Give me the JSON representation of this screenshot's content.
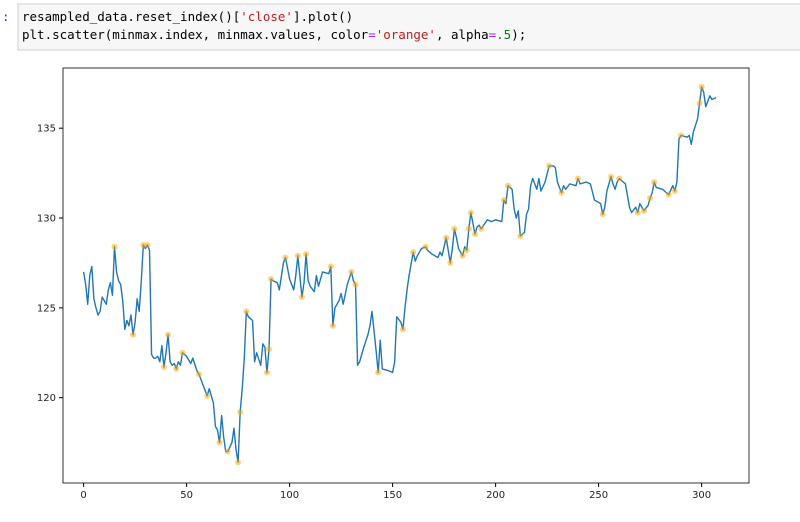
{
  "code": {
    "prompt": ":",
    "lines": [
      "resampled_data.reset_index()['close'].plot()",
      "plt.scatter(minmax.index, minmax.values, color='orange', alpha=.5);"
    ]
  },
  "chart_data": {
    "type": "line",
    "xlim": [
      -10,
      323
    ],
    "ylim": [
      115.25,
      138.35
    ],
    "xticks": [
      0,
      50,
      100,
      150,
      200,
      250,
      300
    ],
    "yticks": [
      120,
      125,
      130,
      135
    ],
    "series": [
      {
        "type": "line",
        "color": "#1f77b4",
        "x": [
          0,
          1,
          2,
          3,
          4,
          5,
          6,
          7,
          8,
          9,
          10,
          11,
          12,
          13,
          14,
          15,
          16,
          17,
          18,
          19,
          20,
          21,
          22,
          23,
          24,
          25,
          26,
          27,
          28,
          29,
          30,
          31,
          32,
          33,
          34,
          35,
          36,
          37,
          38,
          39,
          40,
          41,
          42,
          43,
          44,
          45,
          46,
          47,
          48,
          50,
          52,
          53,
          55,
          56,
          58,
          60,
          61,
          63,
          64,
          65,
          66,
          67,
          68,
          69,
          70,
          72,
          73,
          74,
          75,
          76,
          77,
          78,
          79,
          80,
          82,
          83,
          84,
          86,
          87,
          88,
          89,
          90,
          91,
          92,
          94,
          95,
          97,
          98,
          100,
          101,
          102,
          103,
          104,
          106,
          107,
          108,
          109,
          110,
          112,
          113,
          114,
          116,
          119,
          120,
          121,
          122,
          124,
          125,
          126,
          128,
          130,
          131,
          132,
          133,
          134,
          136,
          138,
          139,
          140,
          142,
          143,
          144,
          145,
          148,
          150,
          151,
          152,
          154,
          155,
          156,
          157,
          158,
          160,
          161,
          162,
          164,
          166,
          167,
          169,
          172,
          173,
          174,
          176,
          178,
          179,
          180,
          181,
          182,
          184,
          185,
          186,
          187,
          188,
          190,
          191,
          192,
          193,
          196,
          198,
          200,
          203,
          204,
          205,
          206,
          208,
          209,
          210,
          211,
          212,
          214,
          215,
          216,
          217,
          218,
          220,
          221,
          222,
          224,
          226,
          228,
          229,
          230,
          232,
          233,
          234,
          236,
          239,
          240,
          241,
          244,
          246,
          248,
          251,
          252,
          253,
          254,
          256,
          257,
          258,
          259,
          260,
          263,
          265,
          266,
          268,
          269,
          270,
          271,
          272,
          274,
          275,
          276,
          277,
          278,
          281,
          283,
          284,
          286,
          287,
          288,
          289,
          290,
          293,
          294,
          295,
          296,
          298,
          299,
          300,
          301,
          302,
          304,
          305,
          307
        ],
        "values": [
          127.0,
          126.3,
          125.2,
          126.8,
          127.3,
          125.5,
          125.0,
          124.6,
          124.8,
          125.6,
          125.4,
          125.2,
          126.0,
          126.4,
          125.7,
          128.4,
          127.0,
          126.5,
          126.3,
          125.4,
          123.8,
          124.3,
          124.0,
          124.6,
          123.5,
          124.2,
          125.5,
          124.8,
          126.5,
          128.5,
          128.3,
          128.5,
          128.2,
          122.4,
          122.2,
          122.2,
          122.3,
          122.0,
          122.9,
          121.7,
          122.5,
          123.5,
          122.0,
          121.8,
          121.9,
          121.6,
          122.0,
          121.8,
          122.5,
          122.3,
          121.9,
          122.2,
          121.5,
          121.3,
          120.7,
          120.1,
          120.5,
          119.7,
          118.4,
          118.2,
          117.5,
          119.0,
          117.8,
          117.0,
          117.0,
          117.5,
          118.3,
          117.1,
          116.4,
          119.2,
          120.5,
          122.2,
          124.8,
          124.5,
          124.3,
          122.0,
          122.5,
          121.8,
          123.0,
          122.8,
          121.4,
          122.7,
          126.6,
          126.5,
          126.4,
          126.0,
          127.5,
          127.8,
          126.6,
          126.3,
          126.0,
          126.8,
          127.9,
          125.6,
          126.4,
          128.0,
          126.5,
          126.2,
          125.9,
          126.8,
          126.2,
          127.0,
          126.9,
          127.3,
          124.0,
          125.0,
          125.4,
          125.8,
          125.2,
          126.3,
          127.0,
          126.5,
          126.3,
          121.8,
          122.0,
          122.8,
          123.5,
          124.0,
          124.8,
          122.6,
          121.4,
          123.2,
          121.6,
          121.5,
          121.4,
          122.0,
          124.5,
          124.2,
          123.8,
          125.0,
          126.0,
          126.8,
          128.1,
          127.6,
          127.9,
          128.3,
          128.4,
          128.2,
          128.0,
          127.8,
          128.1,
          127.9,
          128.9,
          127.5,
          128.3,
          129.4,
          128.9,
          128.3,
          127.9,
          128.4,
          128.2,
          129.4,
          130.3,
          129.1,
          129.5,
          129.6,
          129.4,
          129.9,
          129.8,
          129.9,
          129.8,
          131.0,
          130.8,
          131.8,
          131.6,
          130.5,
          130.0,
          130.4,
          129.0,
          129.2,
          130.2,
          130.5,
          131.8,
          132.2,
          131.6,
          132.2,
          131.5,
          132.0,
          132.9,
          132.9,
          132.8,
          132.0,
          131.4,
          131.8,
          131.6,
          131.9,
          131.8,
          132.2,
          131.9,
          132.0,
          131.9,
          131.0,
          130.8,
          130.2,
          130.6,
          131.5,
          132.3,
          131.9,
          131.6,
          132.0,
          132.2,
          131.9,
          130.6,
          130.3,
          130.6,
          130.3,
          130.8,
          130.6,
          130.4,
          130.7,
          131.1,
          131.4,
          132.0,
          131.7,
          131.6,
          131.4,
          131.3,
          131.8,
          131.5,
          132.0,
          134.4,
          134.6,
          134.5,
          134.6,
          134.1,
          134.8,
          135.5,
          136.4,
          137.3,
          137.0,
          136.2,
          136.8,
          136.6,
          136.7
        ]
      },
      {
        "type": "scatter",
        "color": "orange",
        "alpha": 0.5,
        "x": [
          15,
          24,
          29,
          31,
          39,
          41,
          45,
          48,
          56,
          60,
          66,
          70,
          75,
          76,
          79,
          89,
          90,
          91,
          98,
          104,
          106,
          108,
          120,
          121,
          130,
          132,
          143,
          155,
          160,
          166,
          176,
          178,
          180,
          184,
          186,
          187,
          188,
          190,
          193,
          204,
          206,
          212,
          226,
          232,
          240,
          252,
          256,
          260,
          269,
          272,
          275,
          277,
          284,
          287,
          290,
          299,
          300
        ],
        "values": [
          128.4,
          123.5,
          128.5,
          128.5,
          121.7,
          123.5,
          121.6,
          122.5,
          121.3,
          120.1,
          117.5,
          117.0,
          116.4,
          119.2,
          124.8,
          121.4,
          122.7,
          126.6,
          127.8,
          127.9,
          125.6,
          128.0,
          127.3,
          124.0,
          127.0,
          126.3,
          121.4,
          123.8,
          128.1,
          128.4,
          128.9,
          127.5,
          129.4,
          127.9,
          128.2,
          129.4,
          130.3,
          129.1,
          129.4,
          131.0,
          131.8,
          129.0,
          132.9,
          131.4,
          132.2,
          130.2,
          132.3,
          132.2,
          130.3,
          130.4,
          131.1,
          132.0,
          131.3,
          131.5,
          134.6,
          136.4,
          137.3
        ]
      }
    ]
  }
}
